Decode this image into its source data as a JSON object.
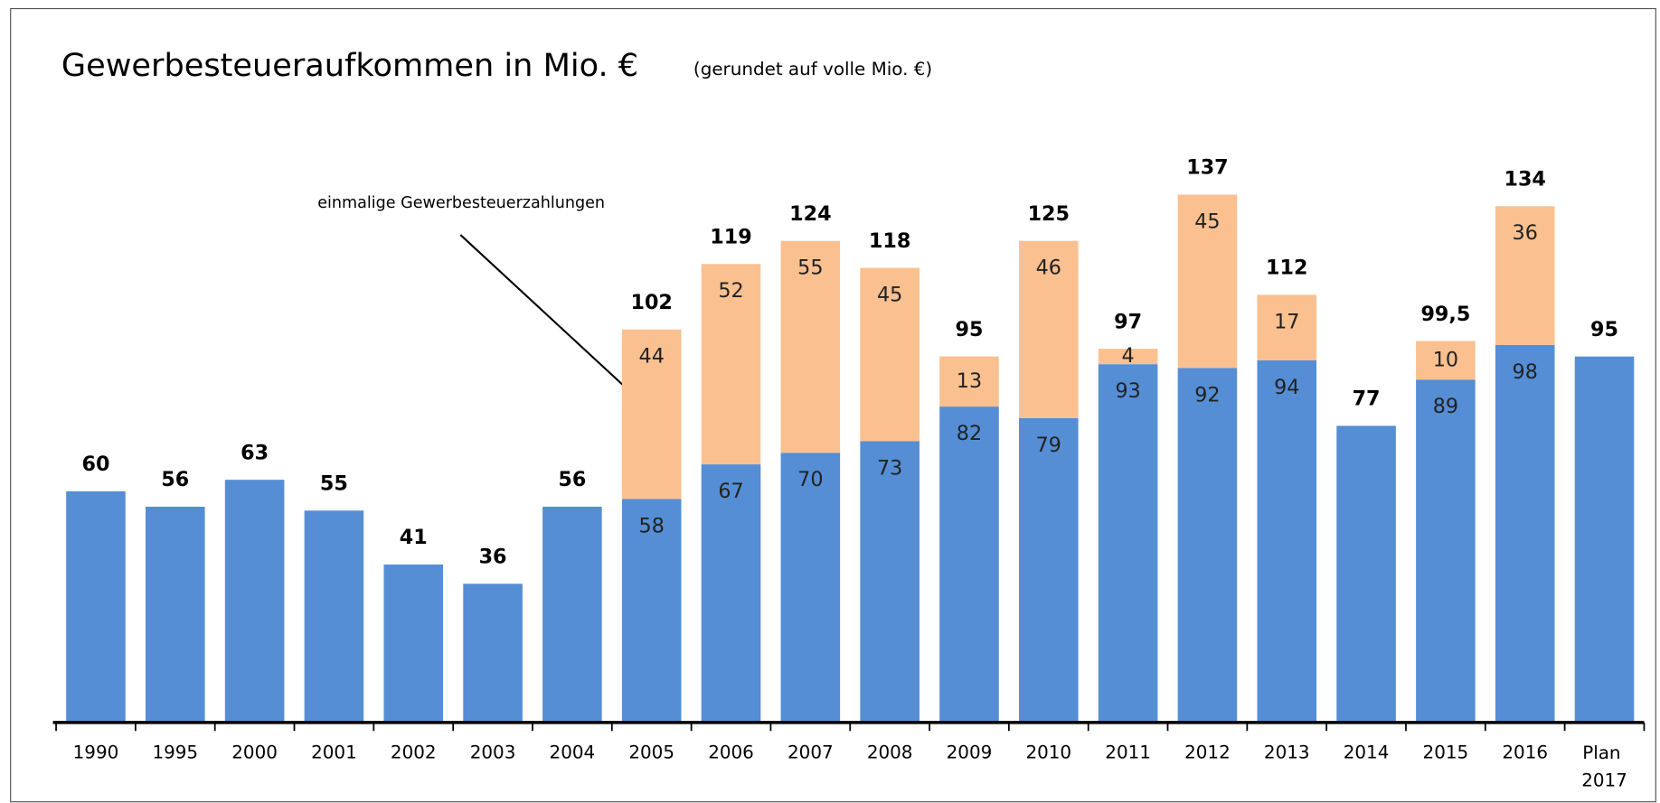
{
  "chart_data": {
    "type": "stacked_bar",
    "title": "Gewerbesteueraufkommen in Mio. €",
    "subtitle": "(gerundet auf volle Mio. €)",
    "annotation": "einmalige Gewerbesteuerzahlungen",
    "categories": [
      "1990",
      "1995",
      "2000",
      "2001",
      "2002",
      "2003",
      "2004",
      "2005",
      "2006",
      "2007",
      "2008",
      "2009",
      "2010",
      "2011",
      "2012",
      "2013",
      "2014",
      "2015",
      "2016",
      "Plan 2017"
    ],
    "series": [
      {
        "color": "#558ed5",
        "values": [
          60,
          56,
          63,
          55,
          41,
          36,
          56,
          58,
          67,
          70,
          73,
          82,
          79,
          93,
          92,
          94,
          77,
          89,
          98,
          95
        ]
      },
      {
        "color": "#fac090",
        "values": [
          null,
          null,
          null,
          null,
          null,
          null,
          null,
          44,
          52,
          55,
          45,
          13,
          46,
          4,
          45,
          17,
          null,
          10,
          36,
          null
        ]
      }
    ],
    "totals": {
      "values": [
        60,
        56,
        63,
        55,
        41,
        36,
        56,
        102,
        119,
        124,
        118,
        95,
        125,
        97,
        137,
        112,
        77,
        99.5,
        134,
        95
      ],
      "value_labels": [
        "60",
        "56",
        "63",
        "55",
        "41",
        "36",
        "56",
        "102",
        "119",
        "124",
        "118",
        "95",
        "125",
        "97",
        "137",
        "112",
        "77",
        "99,5",
        "134",
        "95"
      ]
    },
    "ylim": [
      0,
      140
    ]
  }
}
